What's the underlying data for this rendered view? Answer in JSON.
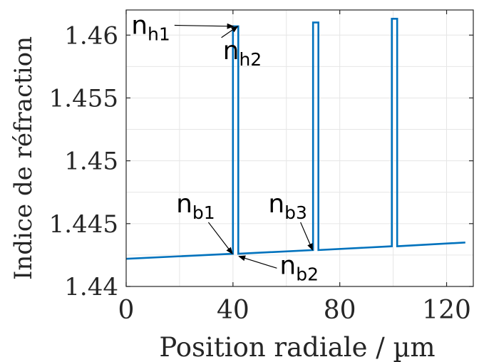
{
  "chart_data": {
    "type": "line",
    "xlabel": "Position radiale / µm",
    "ylabel": "Indice  de réfraction",
    "xlim": [
      0,
      130
    ],
    "ylim": [
      1.44,
      1.462
    ],
    "x_ticks": [
      0,
      40,
      80,
      120
    ],
    "x_tick_labels": [
      "0",
      "40",
      "80",
      "120"
    ],
    "y_ticks": [
      1.44,
      1.445,
      1.45,
      1.455,
      1.46
    ],
    "y_tick_labels": [
      "1.44",
      "1.445",
      "1.45",
      "1.455",
      "1.46"
    ],
    "grid": true,
    "line_color": "#0072BD",
    "series": [
      {
        "x": [
          0,
          40,
          40,
          42,
          42,
          70,
          70,
          72,
          72,
          99.5,
          99.5,
          101.5,
          101.5,
          127
        ],
        "y": [
          1.4422,
          1.4426,
          1.4607,
          1.4607,
          1.4426,
          1.4429,
          1.461,
          1.461,
          1.4429,
          1.4432,
          1.4613,
          1.4613,
          1.4432,
          1.4435
        ]
      }
    ],
    "annotations": [
      {
        "base": "n",
        "sub": "h1",
        "x": 16.5,
        "y": 1.4601,
        "ax": 40.2,
        "ay": 1.4607,
        "anchor": "end"
      },
      {
        "base": "n",
        "sub": "h2",
        "x": 36.2,
        "y": 1.4581,
        "ax": 41.8,
        "ay": 1.4607,
        "anchor": "start"
      },
      {
        "base": "n",
        "sub": "b1",
        "x": 26,
        "y": 1.4459,
        "ax": 39.8,
        "ay": 1.4426,
        "anchor": "middle"
      },
      {
        "base": "n",
        "sub": "b3",
        "x": 60.5,
        "y": 1.4459,
        "ax": 69.8,
        "ay": 1.4429,
        "anchor": "middle"
      },
      {
        "base": "n",
        "sub": "b2",
        "x": 57.5,
        "y": 1.441,
        "ax": 42.2,
        "ay": 1.4424,
        "anchor": "start"
      }
    ]
  }
}
